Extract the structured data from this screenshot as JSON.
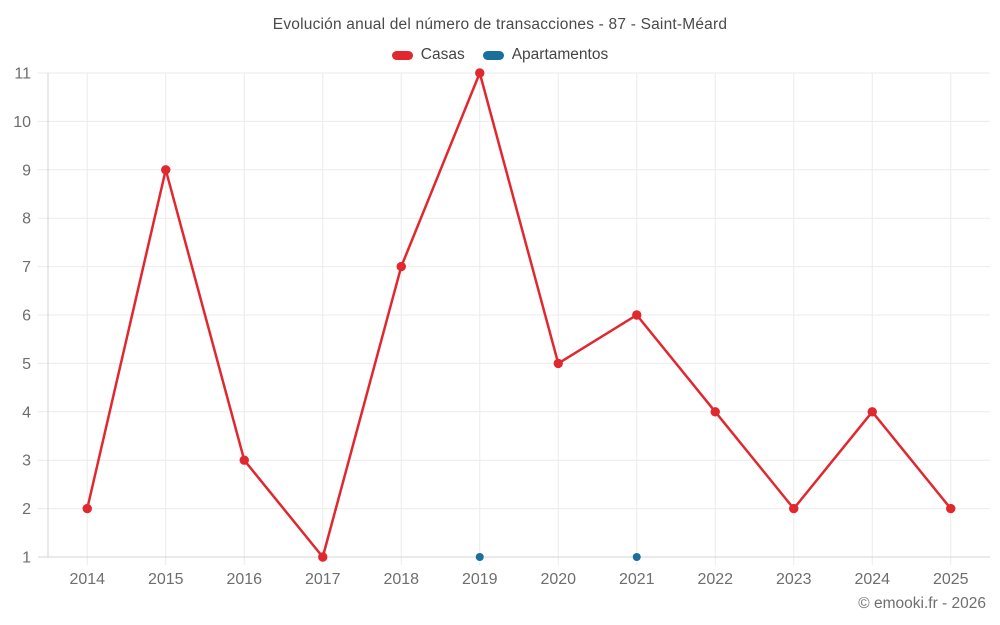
{
  "chart_data": {
    "type": "line",
    "title": "Evolución anual del número de transacciones - 87 - Saint-Méard",
    "categories": [
      "2014",
      "2015",
      "2016",
      "2017",
      "2018",
      "2019",
      "2020",
      "2021",
      "2022",
      "2023",
      "2024",
      "2025"
    ],
    "series": [
      {
        "name": "Casas",
        "color": "#e0282e",
        "line": true,
        "marker_radius": 4.7,
        "values": [
          2,
          9,
          3,
          1,
          7,
          11,
          5,
          6,
          4,
          2,
          4,
          2
        ]
      },
      {
        "name": "Apartamentos",
        "color": "#1a6f9c",
        "line": false,
        "marker_radius": 4,
        "values": [
          null,
          null,
          null,
          null,
          null,
          1,
          null,
          1,
          null,
          null,
          null,
          null
        ]
      }
    ],
    "ylim": [
      1,
      11
    ],
    "yticks": [
      1,
      2,
      3,
      4,
      5,
      6,
      7,
      8,
      9,
      10,
      11
    ],
    "grid": true,
    "legend_position": "top"
  },
  "footer": {
    "copyright": "© emooki.fr - 2026"
  },
  "colors": {
    "background": "#ffffff",
    "grid": "#ebebeb",
    "axis": "#d4d4d4",
    "tick_label": "#6e6e6e",
    "title": "#4a4a4a",
    "legend_text": "#454545",
    "copyright": "#6f6f6f"
  }
}
